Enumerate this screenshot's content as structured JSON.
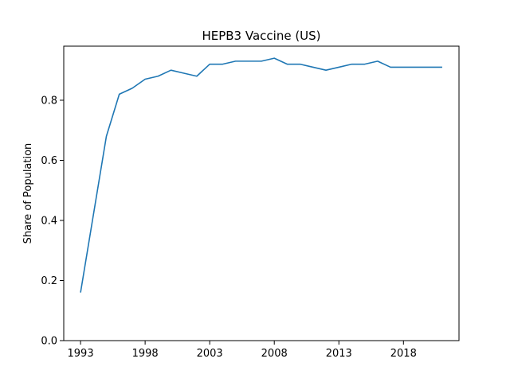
{
  "chart_data": {
    "type": "line",
    "title": "HEPB3 Vaccine (US)",
    "xlabel": "",
    "ylabel": "Share of Population",
    "x_ticks": [
      1993,
      1998,
      2003,
      2008,
      2013,
      2018
    ],
    "y_ticks": [
      0.0,
      0.2,
      0.4,
      0.6,
      0.8
    ],
    "y_tick_labels": [
      "0.0",
      "0.2",
      "0.4",
      "0.6",
      "0.8"
    ],
    "xlim": [
      1991.7,
      2022.3
    ],
    "ylim": [
      0.0,
      0.98
    ],
    "grid": false,
    "series": [
      {
        "color": "#1f77b4",
        "x": [
          1993,
          1994,
          1995,
          1996,
          1997,
          1998,
          1999,
          2000,
          2001,
          2002,
          2003,
          2004,
          2005,
          2006,
          2007,
          2008,
          2009,
          2010,
          2011,
          2012,
          2013,
          2014,
          2015,
          2016,
          2017,
          2018,
          2019,
          2020,
          2021
        ],
        "y": [
          0.16,
          0.42,
          0.68,
          0.82,
          0.84,
          0.87,
          0.88,
          0.9,
          0.89,
          0.88,
          0.92,
          0.92,
          0.93,
          0.93,
          0.93,
          0.94,
          0.92,
          0.92,
          0.91,
          0.9,
          0.91,
          0.92,
          0.92,
          0.93,
          0.91,
          0.91,
          0.91,
          0.91,
          0.91
        ]
      }
    ]
  }
}
